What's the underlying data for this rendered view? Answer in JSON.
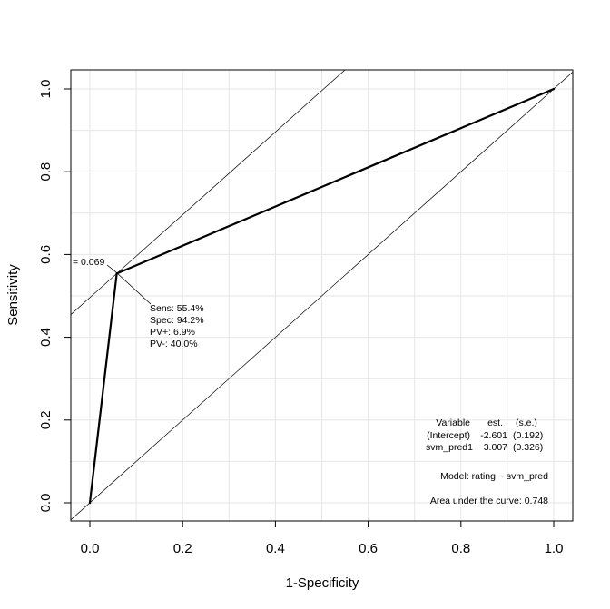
{
  "chart_data": {
    "type": "line",
    "title": "",
    "xlabel": "1-Specificity",
    "ylabel": "Sensitivity",
    "xlim": [
      0,
      1
    ],
    "ylim": [
      0,
      1
    ],
    "grid": true,
    "x_ticks": [
      "0.0",
      "0.2",
      "0.4",
      "0.6",
      "0.8",
      "1.0"
    ],
    "y_ticks": [
      "0.0",
      "0.2",
      "0.4",
      "0.6",
      "0.8",
      "1.0"
    ],
    "series": [
      {
        "values": [
          {
            "x": 0,
            "y": 0
          },
          {
            "x": 0.058,
            "y": 0.554
          },
          {
            "x": 1,
            "y": 1
          }
        ]
      }
    ],
    "reference_lines": [
      {
        "intercept": 0,
        "slope": 1
      },
      {
        "intercept": 0.496,
        "slope": 1
      }
    ],
    "optimal_point": {
      "x": 0.058,
      "y": 0.554
    },
    "cutoff_label": "= 0.069",
    "point_stats": [
      "Sens: 55.4%",
      "Spec: 94.2%",
      "PV+: 6.9%",
      "PV-: 40.0%"
    ],
    "model_table": {
      "header": [
        "Variable",
        "est.",
        "(s.e.)"
      ],
      "rows": [
        [
          "(Intercept)",
          "-2.601",
          "(0.192)"
        ],
        [
          "svm_pred1",
          "3.007",
          "(0.326)"
        ]
      ]
    },
    "model_formula": "Model:  rating ~ svm_pred",
    "auc_text": "Area under the curve: 0.748"
  }
}
